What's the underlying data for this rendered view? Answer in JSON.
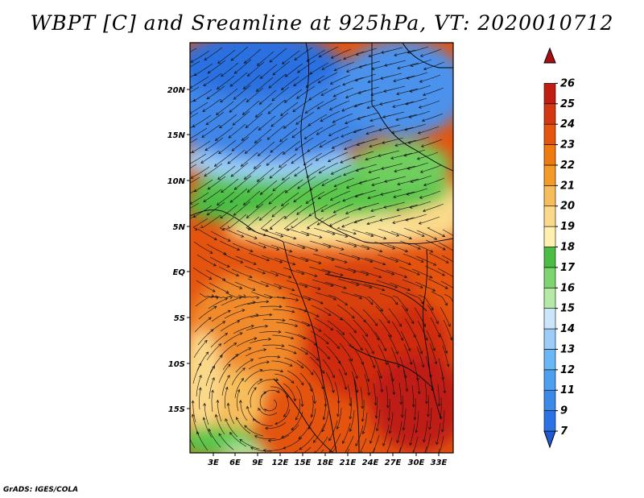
{
  "title": "WBPT [C] and Sreamline at 925hPa, VT: 2020010712",
  "footer": "GrADS: IGES/COLA",
  "map": {
    "variable": "Wet-bulb potential temperature",
    "level": "925hPa",
    "x_ticks": [
      "3E",
      "6E",
      "9E",
      "12E",
      "15E",
      "18E",
      "21E",
      "24E",
      "27E",
      "30E",
      "33E"
    ],
    "y_ticks": [
      "20N",
      "15N",
      "10N",
      "5N",
      "EQ",
      "5S",
      "10S",
      "15S"
    ],
    "lon_range": [
      0,
      35
    ],
    "lat_range": [
      -20,
      25
    ]
  },
  "colorbar": {
    "labels": [
      "7",
      "9",
      "11",
      "12",
      "13",
      "14",
      "15",
      "16",
      "17",
      "18",
      "19",
      "20",
      "21",
      "22",
      "23",
      "24",
      "25",
      "26"
    ],
    "colors": [
      "#1e5ad2",
      "#2b72e6",
      "#3c8ae8",
      "#4f9ff0",
      "#6bb6f4",
      "#9ccdf8",
      "#cbe6fb",
      "#b4eaa6",
      "#7cd56f",
      "#4bbd45",
      "#fff0b0",
      "#fbd98a",
      "#f7bd5b",
      "#f39a28",
      "#ee7a10",
      "#e6550f",
      "#d43810",
      "#c01e12",
      "#a90f10"
    ]
  },
  "colors": {
    "cold": "#3e7fe6",
    "green": "#5ac64c",
    "warm": "#e8540f",
    "hot": "#c41d10"
  }
}
